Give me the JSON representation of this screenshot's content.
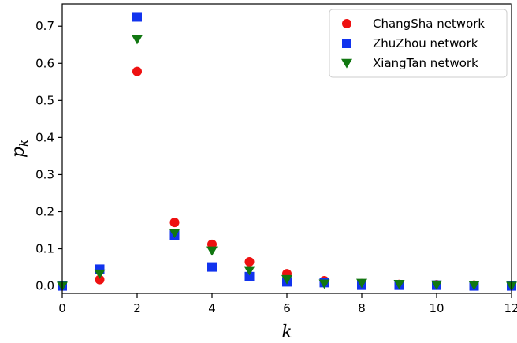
{
  "chart_data": {
    "type": "scatter",
    "title": "",
    "xlabel": "k",
    "ylabel_base": "p",
    "ylabel_sub": "k",
    "xlim": [
      0,
      12
    ],
    "ylim": [
      -0.02,
      0.76
    ],
    "xticks": [
      0,
      2,
      4,
      6,
      8,
      10,
      12
    ],
    "xtick_labels": [
      "0",
      "2",
      "4",
      "6",
      "8",
      "10",
      "12"
    ],
    "yticks": [
      0.0,
      0.1,
      0.2,
      0.3,
      0.4,
      0.5,
      0.6,
      0.7
    ],
    "ytick_labels": [
      "0.0",
      "0.1",
      "0.2",
      "0.3",
      "0.4",
      "0.5",
      "0.6",
      "0.7"
    ],
    "grid": false,
    "legend_position": "top-right",
    "series": [
      {
        "name": "ChangSha network",
        "marker": "circle",
        "color": "#ee1111",
        "x": [
          0,
          1,
          2,
          3,
          4,
          5,
          6,
          7,
          8,
          9,
          10,
          11,
          12
        ],
        "y": [
          0.0,
          0.017,
          0.578,
          0.171,
          0.112,
          0.065,
          0.033,
          0.014,
          0.006,
          0.004,
          0.003,
          0.002,
          0.001
        ]
      },
      {
        "name": "ZhuZhou network",
        "marker": "square",
        "color": "#1133ee",
        "x": [
          0,
          1,
          2,
          3,
          4,
          5,
          6,
          7,
          8,
          9,
          10,
          11,
          12
        ],
        "y": [
          0.0,
          0.045,
          0.725,
          0.137,
          0.051,
          0.025,
          0.011,
          0.009,
          0.002,
          0.002,
          0.002,
          0.0,
          0.0
        ]
      },
      {
        "name": "XiangTan network",
        "marker": "triangle-down",
        "color": "#117711",
        "x": [
          0,
          1,
          2,
          3,
          4,
          5,
          6,
          7,
          8,
          9,
          10,
          11,
          12
        ],
        "y": [
          0.0,
          0.033,
          0.665,
          0.143,
          0.095,
          0.042,
          0.018,
          0.006,
          0.008,
          0.005,
          0.003,
          0.002,
          0.0
        ]
      }
    ]
  }
}
